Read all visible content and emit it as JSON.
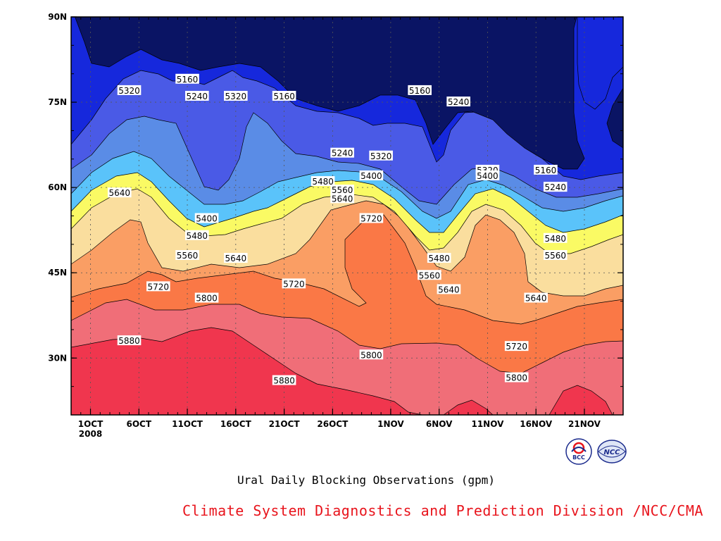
{
  "chart_data": {
    "type": "heatmap",
    "title": "Ural Daily Blocking Observations (gpm)",
    "footer": "Climate System Diagnostics and Prediction Division /NCC/CMA",
    "footer_color": "#e8141c",
    "x_axis": {
      "type": "date",
      "range": [
        "2008-09-29",
        "2008-11-25"
      ],
      "tick_dates": [
        "2008-10-01",
        "2008-10-06",
        "2008-10-11",
        "2008-10-16",
        "2008-10-21",
        "2008-10-26",
        "2008-11-01",
        "2008-11-06",
        "2008-11-11",
        "2008-11-16",
        "2008-11-21"
      ],
      "tick_labels": [
        "1OCT\n2008",
        "6OCT",
        "11OCT",
        "16OCT",
        "21OCT",
        "26OCT",
        "1NOV",
        "6NOV",
        "11NOV",
        "16NOV",
        "21NOV"
      ]
    },
    "y_axis": {
      "range": [
        20,
        90
      ],
      "ticks": [
        30,
        45,
        60,
        75,
        90
      ],
      "tick_labels": [
        "30N",
        "45N",
        "60N",
        "75N",
        "90N"
      ]
    },
    "grid": "dotted",
    "levels": [
      5160,
      5240,
      5320,
      5400,
      5480,
      5560,
      5640,
      5720,
      5800,
      5880
    ],
    "fill_colors": [
      "#0a1464",
      "#1628dc",
      "#4a5ae6",
      "#5a8ce6",
      "#5ac3fa",
      "#fafa64",
      "#fade9e",
      "#fa9e64",
      "#fa7846",
      "#f06e78",
      "#f0364e"
    ],
    "contour_labels": [
      {
        "text": "5160",
        "date": "2008-10-11",
        "lat": 79
      },
      {
        "text": "5240",
        "date": "2008-10-12",
        "lat": 76
      },
      {
        "text": "5320",
        "date": "2008-10-05",
        "lat": 77
      },
      {
        "text": "5320",
        "date": "2008-10-16",
        "lat": 76
      },
      {
        "text": "5160",
        "date": "2008-10-21",
        "lat": 76
      },
      {
        "text": "5240",
        "date": "2008-10-27",
        "lat": 66
      },
      {
        "text": "5320",
        "date": "2008-10-31",
        "lat": 65.5
      },
      {
        "text": "5160",
        "date": "2008-11-04",
        "lat": 77
      },
      {
        "text": "5240",
        "date": "2008-11-08",
        "lat": 75
      },
      {
        "text": "5400",
        "date": "2008-10-30",
        "lat": 62
      },
      {
        "text": "5480",
        "date": "2008-10-25",
        "lat": 61
      },
      {
        "text": "5560",
        "date": "2008-10-27",
        "lat": 59.5
      },
      {
        "text": "5640",
        "date": "2008-10-27",
        "lat": 58
      },
      {
        "text": "5720",
        "date": "2008-10-30",
        "lat": 54.5
      },
      {
        "text": "5320",
        "date": "2008-11-11",
        "lat": 63
      },
      {
        "text": "5400",
        "date": "2008-11-11",
        "lat": 62
      },
      {
        "text": "5160",
        "date": "2008-11-17",
        "lat": 63
      },
      {
        "text": "5240",
        "date": "2008-11-18",
        "lat": 60
      },
      {
        "text": "5480",
        "date": "2008-11-18",
        "lat": 51
      },
      {
        "text": "5560",
        "date": "2008-11-18",
        "lat": 48
      },
      {
        "text": "5640",
        "date": "2008-11-16",
        "lat": 40.5
      },
      {
        "text": "5640",
        "date": "2008-10-04",
        "lat": 59
      },
      {
        "text": "5400",
        "date": "2008-10-13",
        "lat": 54.5
      },
      {
        "text": "5480",
        "date": "2008-10-12",
        "lat": 51.5
      },
      {
        "text": "5560",
        "date": "2008-10-11",
        "lat": 48
      },
      {
        "text": "5640",
        "date": "2008-10-16",
        "lat": 47.5
      },
      {
        "text": "5480",
        "date": "2008-11-06",
        "lat": 47.5
      },
      {
        "text": "5560",
        "date": "2008-11-05",
        "lat": 44.5
      },
      {
        "text": "5640",
        "date": "2008-11-07",
        "lat": 42
      },
      {
        "text": "5720",
        "date": "2008-10-08",
        "lat": 42.5
      },
      {
        "text": "5800",
        "date": "2008-10-13",
        "lat": 40.5
      },
      {
        "text": "5720",
        "date": "2008-10-22",
        "lat": 43
      },
      {
        "text": "5880",
        "date": "2008-10-05",
        "lat": 33
      },
      {
        "text": "5800",
        "date": "2008-10-30",
        "lat": 30.5
      },
      {
        "text": "5880",
        "date": "2008-10-21",
        "lat": 26
      },
      {
        "text": "5720",
        "date": "2008-11-14",
        "lat": 32
      },
      {
        "text": "5800",
        "date": "2008-11-14",
        "lat": 26.5
      }
    ]
  },
  "logos": {
    "bcc": {
      "text": "BCC",
      "color": "#1a2a8c"
    },
    "ncc": {
      "text": "NCC",
      "color": "#1a2a8c"
    }
  }
}
